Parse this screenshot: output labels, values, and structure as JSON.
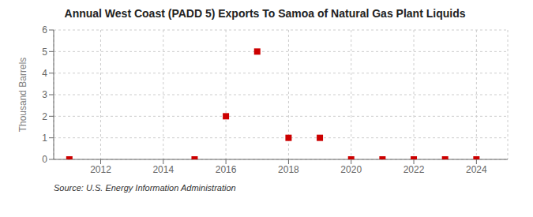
{
  "chart_data": {
    "type": "scatter",
    "title": "Annual West Coast (PADD 5) Exports To Samoa of Natural Gas Plant Liquids",
    "ylabel": "Thousand Barrels",
    "annotations": [
      "Source: U.S. Energy Information Administration"
    ],
    "x": [
      2011,
      2015,
      2016,
      2017,
      2018,
      2019,
      2020,
      2021,
      2022,
      2023,
      2024
    ],
    "values": [
      0,
      0,
      2,
      5,
      1,
      1,
      0,
      0,
      0,
      0,
      0
    ],
    "color": "#cc0000",
    "marker": "square",
    "xlim": [
      2010.5,
      2025.0
    ],
    "ylim": [
      0,
      6
    ],
    "xticks": [
      2012,
      2014,
      2016,
      2018,
      2020,
      2022,
      2024
    ],
    "yticks": [
      0,
      1,
      2,
      3,
      4,
      5,
      6
    ],
    "grid": true
  }
}
